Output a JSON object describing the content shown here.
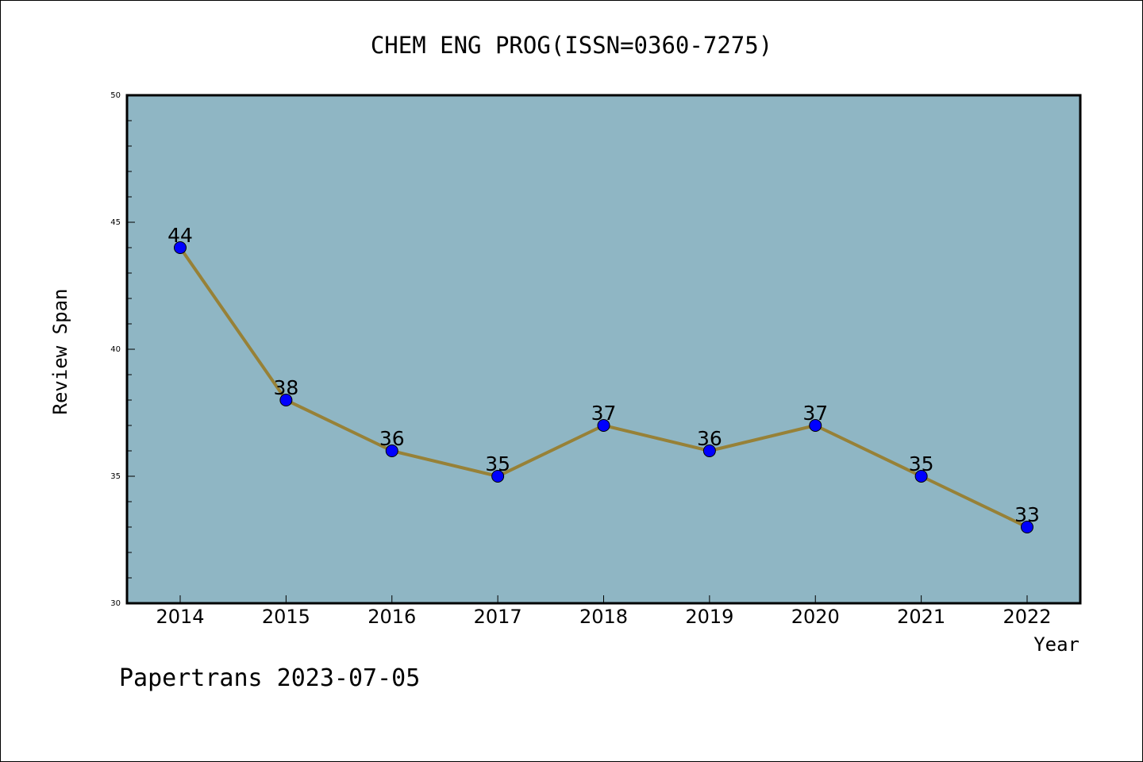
{
  "chart_data": {
    "type": "line",
    "title": "CHEM ENG PROG(ISSN=0360-7275)",
    "xlabel": "Year",
    "ylabel": "Review Span",
    "categories": [
      "2014",
      "2015",
      "2016",
      "2017",
      "2018",
      "2019",
      "2020",
      "2021",
      "2022"
    ],
    "series": [
      {
        "values": [
          44,
          38,
          36,
          35,
          37,
          36,
          37,
          35,
          33
        ],
        "data_labels": [
          "44",
          "38",
          "36",
          "35",
          "37",
          "36",
          "37",
          "35",
          "33"
        ]
      }
    ],
    "ylim": [
      30,
      50
    ],
    "y_ticks": [
      "30",
      "35",
      "40",
      "45",
      "50"
    ],
    "y_tick_values": [
      30,
      35,
      40,
      45,
      50
    ],
    "grid": false,
    "colors": {
      "plot_background": "#8fb6c4",
      "line": "#978137",
      "marker": "#0000ff"
    }
  },
  "footer": {
    "text": "Papertrans 2023-07-05"
  }
}
